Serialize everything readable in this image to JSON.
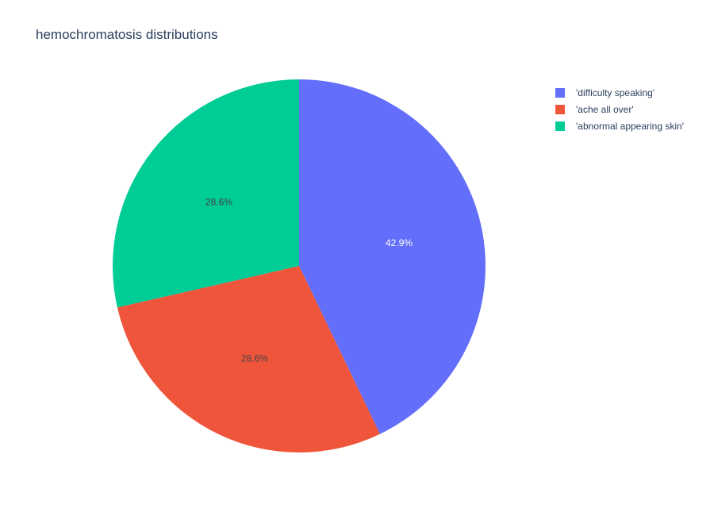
{
  "chart_data": {
    "type": "pie",
    "title": "hemochromatosis distributions",
    "labels": [
      "'difficulty speaking'",
      "'ache all over'",
      "'abnormal appearing skin'"
    ],
    "values": [
      42.9,
      28.6,
      28.6
    ],
    "value_labels": [
      "42.9%",
      "28.6%",
      "28.6%"
    ],
    "colors": [
      "#636efa",
      "#ef553b",
      "#00cc96"
    ],
    "label_colors": [
      "#ffffff",
      "#444444",
      "#444444"
    ],
    "legend_position": "top-right",
    "start_angle": "12 o'clock",
    "direction": "clockwise"
  }
}
